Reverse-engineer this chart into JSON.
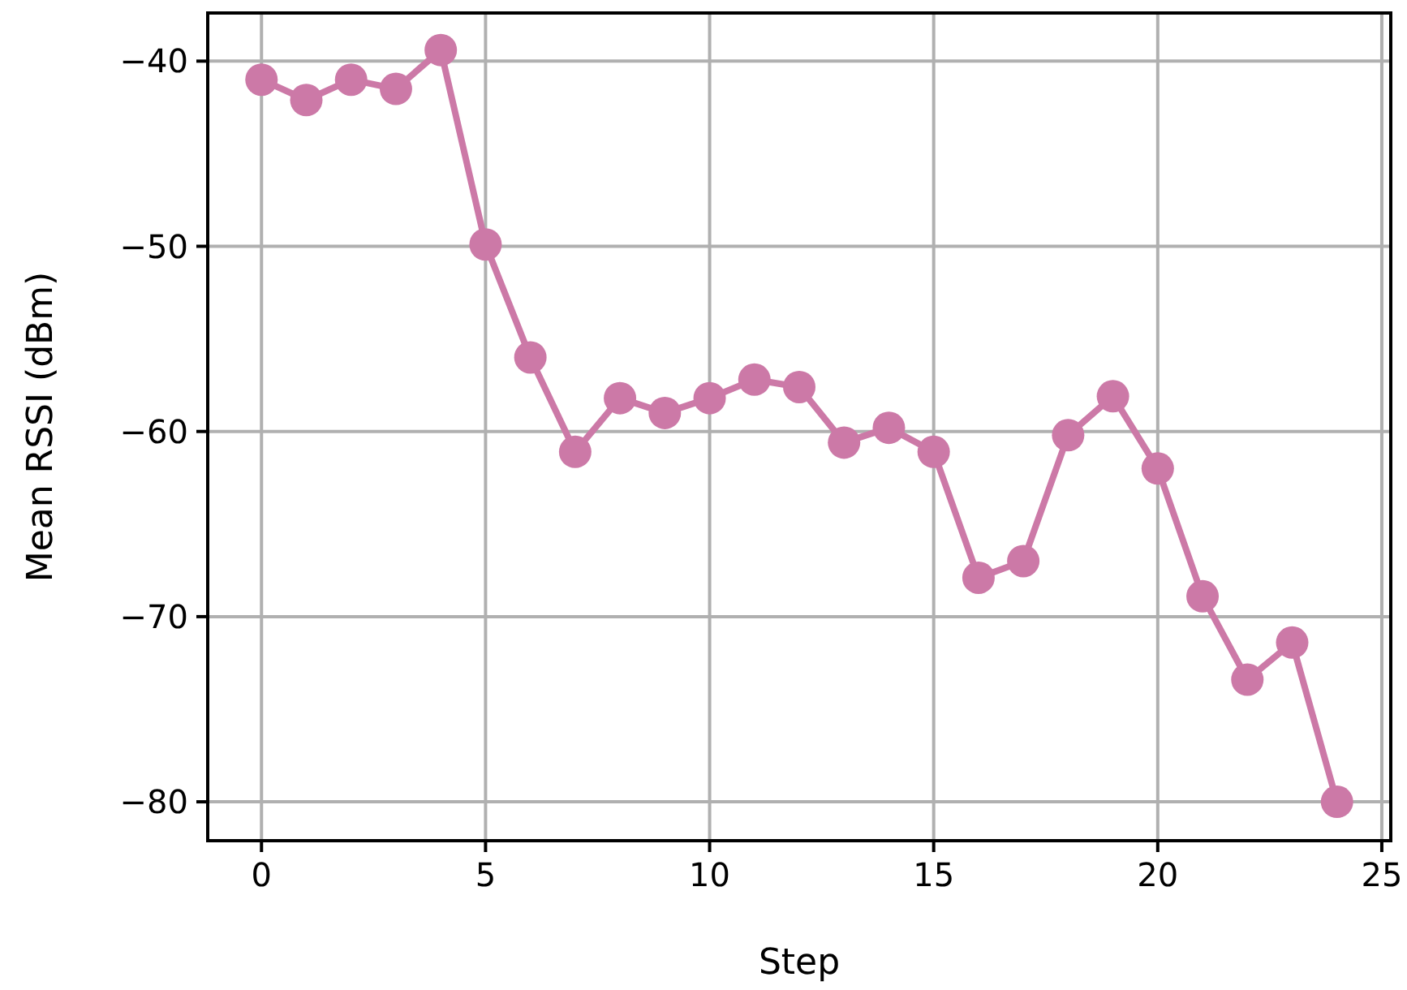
{
  "chart_data": {
    "type": "line",
    "xlabel": "Step",
    "ylabel": "Mean RSSI (dBm)",
    "x": [
      0,
      1,
      2,
      3,
      4,
      5,
      6,
      7,
      8,
      9,
      10,
      11,
      12,
      13,
      14,
      15,
      16,
      17,
      18,
      19,
      20,
      21,
      22,
      23,
      24
    ],
    "series": [
      {
        "color": "#cc79a7",
        "values": [
          -41.0,
          -42.1,
          -41.0,
          -41.5,
          -39.4,
          -49.9,
          -56.0,
          -61.1,
          -58.2,
          -59.0,
          -58.2,
          -57.2,
          -57.6,
          -60.6,
          -59.8,
          -61.1,
          -67.9,
          -67.0,
          -60.2,
          -58.1,
          -62.0,
          -68.9,
          -73.4,
          -71.4,
          -80.0
        ]
      }
    ],
    "xlim": [
      -1.2,
      25.2
    ],
    "ylim": [
      -82.1,
      -37.4
    ],
    "xticks": [
      0,
      5,
      10,
      15,
      20,
      25
    ],
    "yticks": [
      {
        "value": -40,
        "label": "−40"
      },
      {
        "value": -50,
        "label": "−50"
      },
      {
        "value": -60,
        "label": "−60"
      },
      {
        "value": -70,
        "label": "−70"
      },
      {
        "value": -80,
        "label": "−80"
      }
    ],
    "grid": true,
    "marker": "circle",
    "line_style": "solid"
  }
}
